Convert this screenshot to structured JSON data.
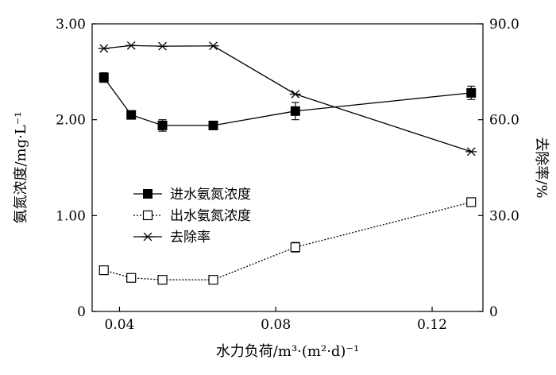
{
  "chart_data": {
    "type": "line",
    "xlabel": "水力负荷/m³·(m²·d)⁻¹",
    "ylabel_left": "氨氮浓度/mg·L⁻¹",
    "ylabel_right": "去除率/%",
    "xlim": [
      0.033,
      0.133
    ],
    "ylim_left": [
      0,
      3.0
    ],
    "ylim_right": [
      0,
      90.0
    ],
    "x_ticks": [
      0.04,
      0.08,
      0.12
    ],
    "x_tick_labels": [
      "0.04",
      "0.08",
      "0.12"
    ],
    "y_left_ticks": [
      0,
      1.0,
      2.0,
      3.0
    ],
    "y_left_tick_labels": [
      "0",
      "1.00",
      "2.00",
      "3.00"
    ],
    "y_right_ticks": [
      0,
      30,
      60,
      90
    ],
    "y_right_tick_labels": [
      "0",
      "30.0",
      "60.0",
      "90.0"
    ],
    "legend_position": "center-left",
    "grid": false,
    "series": [
      {
        "name": "进水氨氮浓度",
        "axis": "left",
        "marker": "filled-square",
        "line": "solid",
        "x": [
          0.036,
          0.043,
          0.051,
          0.064,
          0.085,
          0.13
        ],
        "y": [
          2.44,
          2.05,
          1.94,
          1.94,
          2.09,
          2.28
        ],
        "err": [
          0.05,
          0.04,
          0.06,
          0.03,
          0.09,
          0.07
        ]
      },
      {
        "name": "出水氨氮浓度",
        "axis": "left",
        "marker": "open-square",
        "line": "dotted",
        "x": [
          0.036,
          0.043,
          0.051,
          0.064,
          0.085,
          0.13
        ],
        "y": [
          0.43,
          0.35,
          0.33,
          0.33,
          0.67,
          1.14
        ],
        "err": [
          0.02,
          0.02,
          0.02,
          0.02,
          0.05,
          0.03
        ]
      },
      {
        "name": "去除率",
        "axis": "right",
        "marker": "asterisk",
        "line": "solid",
        "x": [
          0.036,
          0.043,
          0.051,
          0.064,
          0.085,
          0.13
        ],
        "y": [
          82.3,
          83.2,
          83.0,
          83.1,
          68.0,
          50.0
        ]
      }
    ]
  }
}
